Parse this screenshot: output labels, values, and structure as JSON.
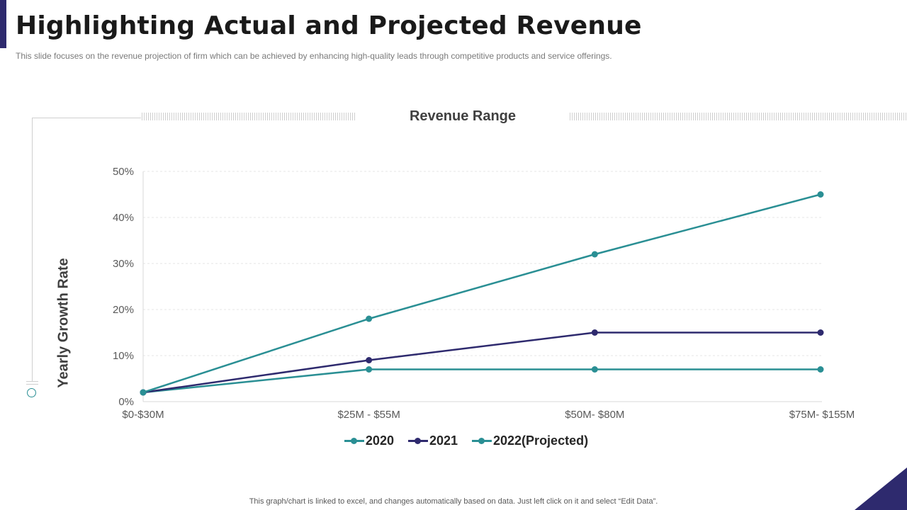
{
  "slide": {
    "title": "Highlighting Actual and Projected Revenue",
    "subtitle": "This slide focuses on the revenue  projection of firm which can be achieved by enhancing high-quality leads through competitive products and service offerings.",
    "footnote": "This graph/chart is linked to excel,  and changes automatically based on data. Just left click on it and select “Edit Data”.",
    "accent_color": "#2e2a6e",
    "teal_color": "#2a8f94"
  },
  "chart_data": {
    "type": "line",
    "title": "Revenue Range",
    "xlabel": "",
    "ylabel": "Yearly Growth Rate",
    "categories": [
      "$0-$30M",
      "$25M - $55M",
      "$50M- $80M",
      "$75M- $155M"
    ],
    "ylim": [
      0,
      50
    ],
    "yticks": [
      0,
      10,
      20,
      30,
      40,
      50
    ],
    "ytick_suffix": "%",
    "grid": true,
    "legend_position": "bottom",
    "series": [
      {
        "name": "2020",
        "values": [
          2,
          18,
          32,
          45
        ],
        "color": "#2a8f94"
      },
      {
        "name": "2021",
        "values": [
          2,
          9,
          15,
          15
        ],
        "color": "#2e2a6e"
      },
      {
        "name": "2022(Projected)",
        "values": [
          2,
          7,
          7,
          7
        ],
        "color": "#2a8f94"
      }
    ]
  }
}
